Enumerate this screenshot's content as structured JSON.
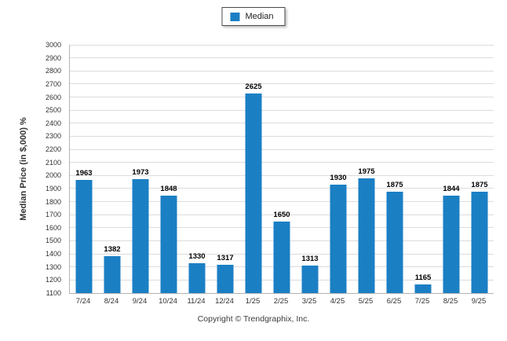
{
  "legend": {
    "label": "Median"
  },
  "colors": {
    "bar": "#1B7FC4",
    "grid": "#DCDCDC",
    "axis": "#B3B3B3"
  },
  "footer": "Copyright © Trendgraphix, Inc.",
  "chart_data": {
    "type": "bar",
    "categories": [
      "7/24",
      "8/24",
      "9/24",
      "10/24",
      "11/24",
      "12/24",
      "1/25",
      "2/25",
      "3/25",
      "4/25",
      "5/25",
      "6/25",
      "7/25",
      "8/25",
      "9/25"
    ],
    "series": [
      {
        "name": "Median",
        "values": [
          1963,
          1382,
          1973,
          1848,
          1330,
          1317,
          2625,
          1650,
          1313,
          1930,
          1975,
          1875,
          1165,
          1844,
          1875
        ]
      }
    ],
    "title": "",
    "xlabel": "",
    "ylabel": "Median Price (in $,000) %",
    "ylim": [
      1100,
      3000
    ],
    "ytick_step": 100,
    "grid": true,
    "legend_position": "top-center",
    "value_labels": true
  }
}
